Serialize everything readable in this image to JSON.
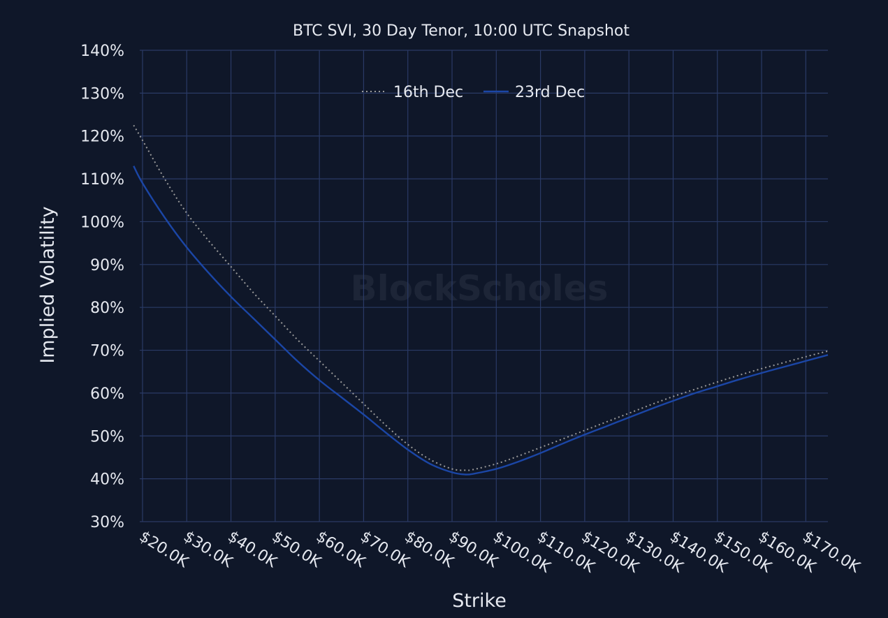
{
  "chart_data": {
    "type": "line",
    "title": "BTC SVI, 30 Day Tenor, 10:00 UTC Snapshot",
    "xlabel": "Strike",
    "ylabel": "Implied Volatility",
    "xlim": [
      17000,
      175000
    ],
    "ylim": [
      30,
      140
    ],
    "x_ticks": [
      20000,
      30000,
      40000,
      50000,
      60000,
      70000,
      80000,
      90000,
      100000,
      110000,
      120000,
      130000,
      140000,
      150000,
      160000,
      170000
    ],
    "x_tick_labels": [
      "$20.0K",
      "$30.0K",
      "$40.0K",
      "$50.0K",
      "$60.0K",
      "$70.0K",
      "$80.0K",
      "$90.0K",
      "$100.0K",
      "$110.0K",
      "$120.0K",
      "$130.0K",
      "$140.0K",
      "$150.0K",
      "$160.0K",
      "$170.0K"
    ],
    "y_ticks": [
      30,
      40,
      50,
      60,
      70,
      80,
      90,
      100,
      110,
      120,
      130,
      140
    ],
    "y_tick_labels": [
      "30%",
      "40%",
      "50%",
      "60%",
      "70%",
      "80%",
      "90%",
      "100%",
      "110%",
      "120%",
      "130%",
      "140%"
    ],
    "grid": true,
    "legend": "top-center",
    "watermark": "BlockScholes",
    "series": [
      {
        "name": "16th Dec",
        "style": "dotted",
        "color": "#9a9a9a",
        "x": [
          18000,
          20000,
          25000,
          30000,
          35000,
          40000,
          45000,
          50000,
          55000,
          60000,
          65000,
          70000,
          75000,
          80000,
          85000,
          90000,
          93000,
          95000,
          100000,
          105000,
          110000,
          115000,
          120000,
          125000,
          130000,
          135000,
          140000,
          145000,
          150000,
          155000,
          160000,
          165000,
          170000,
          175000
        ],
        "y": [
          122.5,
          119,
          110,
          102,
          95.5,
          89.5,
          83.5,
          78,
          72.5,
          67.5,
          62.5,
          57.5,
          52.5,
          48,
          44.5,
          42.3,
          42,
          42.2,
          43.5,
          45.3,
          47.3,
          49.3,
          51.3,
          53.3,
          55.3,
          57.3,
          59.2,
          60.9,
          62.6,
          64.2,
          65.7,
          67.1,
          68.5,
          69.8
        ]
      },
      {
        "name": "23rd Dec",
        "style": "solid",
        "color": "#1b46a6",
        "x": [
          18000,
          20000,
          25000,
          30000,
          35000,
          40000,
          45000,
          50000,
          55000,
          60000,
          65000,
          70000,
          75000,
          80000,
          85000,
          90000,
          93000,
          95000,
          100000,
          105000,
          110000,
          115000,
          120000,
          125000,
          130000,
          135000,
          140000,
          145000,
          150000,
          155000,
          160000,
          165000,
          170000,
          175000
        ],
        "y": [
          113,
          109,
          101,
          94,
          88,
          82.5,
          77.5,
          72.5,
          67.5,
          63,
          59,
          55,
          50.8,
          46.8,
          43.5,
          41.5,
          41,
          41.2,
          42.3,
          44,
          46,
          48.2,
          50.3,
          52.3,
          54.3,
          56.3,
          58.2,
          60,
          61.6,
          63.2,
          64.7,
          66.1,
          67.5,
          68.9
        ]
      }
    ]
  }
}
